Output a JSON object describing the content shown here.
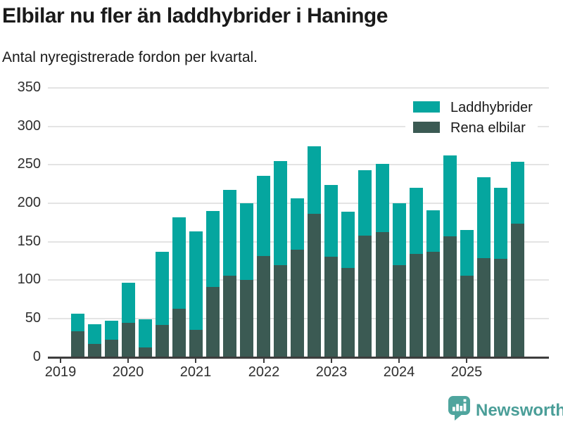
{
  "title": "Elbilar nu fler än laddhybrider i Haninge",
  "subtitle": "Antal nyregistrerade fordon per kvartal.",
  "colors": {
    "laddhybrider": "#05a69f",
    "rena_elbilar": "#3b5a53",
    "grid": "#e4e4e4",
    "axis": "#3d3d3d",
    "text": "#1a1a1a",
    "brand_icon": "#4fa59e",
    "brand_text": "#4a9e98"
  },
  "legend": [
    {
      "label": "Laddhybrider",
      "color_key": "laddhybrider"
    },
    {
      "label": "Rena elbilar",
      "color_key": "rena_elbilar"
    }
  ],
  "footer": {
    "brand": "Newsworthy",
    "logo_icon": "bar-chart-speech-bubble"
  },
  "chart_data": {
    "type": "bar",
    "stacked": true,
    "title": "Elbilar nu fler än laddhybrider i Haninge",
    "subtitle": "Antal nyregistrerade fordon per kvartal.",
    "xlabel": "",
    "ylabel": "",
    "ylim": [
      0,
      350
    ],
    "y_ticks": [
      0,
      50,
      100,
      150,
      200,
      250,
      300,
      350
    ],
    "grid": true,
    "legend_position": "top-right",
    "x_tick_labels": [
      "2019",
      "2020",
      "2021",
      "2022",
      "2023",
      "2024",
      "2025"
    ],
    "categories": [
      "2019 Q2",
      "2019 Q3",
      "2019 Q4",
      "2020 Q1",
      "2020 Q2",
      "2020 Q3",
      "2020 Q4",
      "2021 Q1",
      "2021 Q2",
      "2021 Q3",
      "2021 Q4",
      "2022 Q1",
      "2022 Q2",
      "2022 Q3",
      "2022 Q4",
      "2023 Q1",
      "2023 Q2",
      "2023 Q3",
      "2023 Q4",
      "2024 Q1",
      "2024 Q2",
      "2024 Q3",
      "2024 Q4",
      "2025 Q1",
      "2025 Q2",
      "2025 Q3",
      "2025 Q4"
    ],
    "series": [
      {
        "name": "Rena elbilar",
        "values": [
          33,
          17,
          22,
          44,
          12,
          42,
          63,
          35,
          91,
          106,
          100,
          131,
          119,
          140,
          186,
          130,
          116,
          158,
          162,
          119,
          134,
          137,
          157,
          106,
          129,
          128,
          173
        ]
      },
      {
        "name": "Laddhybrider",
        "values": [
          23,
          26,
          25,
          53,
          37,
          95,
          119,
          128,
          99,
          111,
          100,
          105,
          136,
          66,
          88,
          94,
          73,
          85,
          89,
          81,
          86,
          54,
          105,
          59,
          105,
          92,
          81
        ]
      }
    ],
    "totals": [
      56,
      43,
      47,
      97,
      49,
      137,
      182,
      163,
      190,
      217,
      200,
      236,
      255,
      206,
      274,
      224,
      189,
      243,
      251,
      200,
      220,
      191,
      262,
      165,
      234,
      220,
      254
    ]
  }
}
